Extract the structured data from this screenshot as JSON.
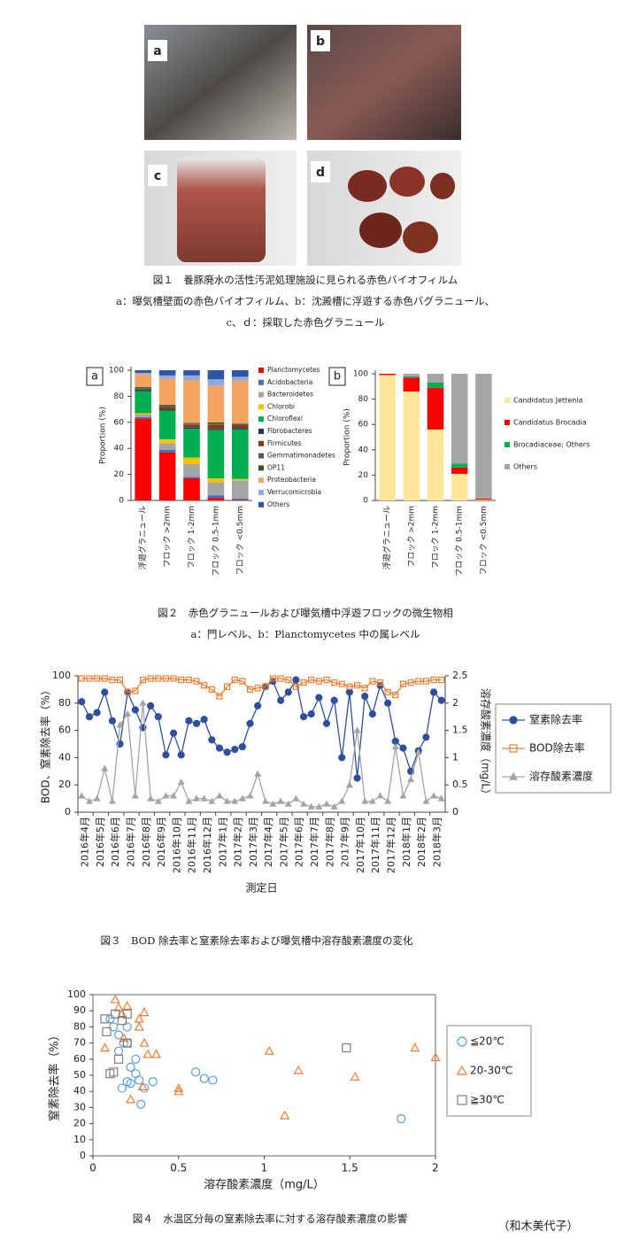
{
  "figure1": {
    "panels": [
      "a",
      "b",
      "c",
      "d"
    ],
    "caption": "図１　養豚廃水の活性汚泥処理施設に見られる赤色バイオフィルム",
    "subcaption1": "a：曝気槽壁面の赤色バイオフィルム、b：沈澱槽に浮遊する赤色バグラニュール、",
    "subcaption2": "c、ｄ：採取した赤色グラニュール"
  },
  "figure2": {
    "caption": "図２　赤色グラニュールおよび曝気槽中浮遊フロックの微生物相",
    "subcaption": "a：門レベル、b：Planctomycetes 中の属レベル"
  },
  "figure3": {
    "caption": "図３　BOD 除去率と窒素除去率および曝気槽中溶存酸素濃度の変化"
  },
  "figure4": {
    "caption": "図４　水温区分毎の窒素除去率に対する溶存酸素濃度の影響",
    "author": "（和木美代子）"
  },
  "chart_data": [
    {
      "type": "stacked_bar",
      "label": "a",
      "ylabel": "Proportion (%)",
      "categories": [
        "浮遊グラニュール",
        "フロック >2mm",
        "フロック 1-2mm",
        "フロック 0.5-1mm",
        "フロック <0.5mm"
      ],
      "ylim": [
        0,
        100
      ],
      "yticks": [
        0,
        20,
        40,
        60,
        80,
        100
      ],
      "series": [
        {
          "name": "Planctomycetes",
          "color": "#ff0000",
          "values": [
            63,
            37,
            17,
            2,
            0.5
          ]
        },
        {
          "name": "Acidobacteria",
          "color": "#4472c4",
          "values": [
            1,
            2,
            1,
            2,
            1
          ]
        },
        {
          "name": "Bacteroidetes",
          "color": "#a5a5a5",
          "values": [
            2,
            5,
            10,
            10,
            14
          ]
        },
        {
          "name": "Chlorobi",
          "color": "#ffc000",
          "values": [
            1,
            3,
            5,
            3,
            1
          ]
        },
        {
          "name": "Chloroflexi",
          "color": "#00b050",
          "values": [
            17,
            22,
            22,
            37,
            38
          ]
        },
        {
          "name": "Fibrobacteres",
          "color": "#203864",
          "values": [
            1,
            1,
            1,
            1,
            1
          ]
        },
        {
          "name": "Firmicutes",
          "color": "#843c0c",
          "values": [
            0.5,
            2,
            2,
            3,
            2
          ]
        },
        {
          "name": "Gemmatimonadetes",
          "color": "#595959",
          "values": [
            0.5,
            1,
            1,
            1,
            1
          ]
        },
        {
          "name": "OP11",
          "color": "#375623",
          "values": [
            1,
            0.5,
            0.5,
            1,
            0.5
          ]
        },
        {
          "name": "Proteobacteria",
          "color": "#f4a460",
          "values": [
            10,
            20,
            33,
            28,
            33
          ]
        },
        {
          "name": "Verrucomicrobia",
          "color": "#8faadc",
          "values": [
            1,
            2.5,
            3.5,
            5,
            3
          ]
        },
        {
          "name": "Others",
          "color": "#2f55a4",
          "values": [
            2,
            4,
            4,
            7,
            5
          ]
        }
      ]
    },
    {
      "type": "stacked_bar",
      "label": "b",
      "ylabel": "Proportion (%)",
      "categories": [
        "浮遊グラニュール",
        "フロック >2mm",
        "フロック 1-2mm",
        "フロック 0.5-1mm",
        "フロック <0.5mm"
      ],
      "ylim": [
        0,
        100
      ],
      "yticks": [
        0,
        20,
        40,
        60,
        80,
        100
      ],
      "series": [
        {
          "name": "Candidatus Jettenia",
          "color": "#ffe699",
          "values": [
            99,
            86,
            56,
            21,
            0.5
          ]
        },
        {
          "name": "Candidatus Brocadia",
          "color": "#ff0000",
          "values": [
            1,
            11,
            33,
            5,
            1
          ]
        },
        {
          "name": "Brocadiaceae; Others",
          "color": "#00b050",
          "values": [
            0,
            1,
            4,
            3,
            0
          ]
        },
        {
          "name": "Others",
          "color": "#a5a5a5",
          "values": [
            0,
            2,
            7,
            71,
            98.5
          ]
        }
      ]
    },
    {
      "type": "line",
      "ylabel": "BOD、窒素除去率（%）",
      "y2label": "溶存酸素濃度（mg/L）",
      "xlabel": "測定日",
      "categories": [
        "2016年4月",
        "2016年5月",
        "2016年6月",
        "2016年7月",
        "2016年8月",
        "2016年9月",
        "2016年10月",
        "2016年11月",
        "2016年12月",
        "2017年1月",
        "2017年2月",
        "2017年3月",
        "2017年4月",
        "2017年5月",
        "2017年6月",
        "2017年7月",
        "2017年8月",
        "2017年9月",
        "2017年10月",
        "2017年11月",
        "2017年12月",
        "2018年1月",
        "2018年2月",
        "2018年3月"
      ],
      "x": [
        "2016年4月",
        "2016年4月",
        "2016年5月",
        "2016年5月",
        "2016年6月",
        "2016年6月",
        "2016年7月",
        "2016年7月",
        "2016年8月",
        "2016年8月",
        "2016年9月",
        "2016年9月",
        "2016年10月",
        "2016年10月",
        "2016年11月",
        "2016年11月",
        "2016年12月",
        "2016年12月",
        "2017年1月",
        "2017年1月",
        "2017年2月",
        "2017年2月",
        "2017年3月",
        "2017年3月",
        "2017年4月",
        "2017年4月",
        "2017年5月",
        "2017年5月",
        "2017年6月",
        "2017年6月",
        "2017年7月",
        "2017年7月",
        "2017年8月",
        "2017年8月",
        "2017年9月",
        "2017年9月",
        "2017年10月",
        "2017年10月",
        "2017年11月",
        "2017年11月",
        "2017年12月",
        "2017年12月",
        "2018年1月",
        "2018年1月",
        "2018年2月",
        "2018年2月",
        "2018年3月",
        "2018年3月"
      ],
      "ylim": [
        0,
        100
      ],
      "yticks": [
        0,
        20,
        40,
        60,
        80,
        100
      ],
      "y2lim": [
        0,
        2.5
      ],
      "y2ticks": [
        0,
        0.5,
        1,
        1.5,
        2,
        2.5
      ],
      "series": [
        {
          "name": "窒素除去率",
          "color": "#2f4f9e",
          "marker": "circle",
          "marker_fill": true,
          "values": [
            81,
            70,
            73,
            88,
            67,
            50,
            88,
            75,
            62,
            78,
            70,
            42,
            58,
            42,
            67,
            65,
            68,
            53,
            47,
            44,
            46,
            48,
            65,
            78,
            92,
            96,
            82,
            88,
            97,
            70,
            72,
            84,
            65,
            82,
            40,
            88,
            25,
            85,
            72,
            93,
            80,
            52,
            47,
            30,
            45,
            55,
            88,
            82
          ]
        },
        {
          "name": "BOD除去率",
          "color": "#ed7d31",
          "marker": "square",
          "marker_fill": false,
          "values": [
            98,
            98,
            98,
            98,
            97,
            97,
            88,
            89,
            97,
            98,
            98,
            98,
            98,
            97,
            97,
            96,
            93,
            90,
            85,
            92,
            97,
            96,
            90,
            91,
            92,
            98,
            98,
            97,
            92,
            95,
            97,
            96,
            97,
            95,
            94,
            92,
            93,
            91,
            96,
            95,
            88,
            86,
            94,
            95,
            96,
            96,
            97,
            97
          ]
        },
        {
          "name": "溶存酸素濃度",
          "color": "#a5a5a5",
          "marker": "triangle",
          "marker_fill": true,
          "axis": "y2",
          "values": [
            0.3,
            0.2,
            0.25,
            0.8,
            0.2,
            1.6,
            1.8,
            0.3,
            2.0,
            0.25,
            0.2,
            0.3,
            0.3,
            0.55,
            0.2,
            0.25,
            0.25,
            0.2,
            0.3,
            0.2,
            0.2,
            0.25,
            0.3,
            0.7,
            0.2,
            0.15,
            0.2,
            0.15,
            0.25,
            0.15,
            0.1,
            0.1,
            0.15,
            0.1,
            0.2,
            0.5,
            1.5,
            0.2,
            0.2,
            0.3,
            0.2,
            1.2,
            0.3,
            0.6,
            1.1,
            0.2,
            0.3,
            0.25
          ]
        }
      ]
    },
    {
      "type": "scatter",
      "xlabel": "溶存酸素濃度（mg/L）",
      "ylabel": "窒素除去率（%）",
      "xlim": [
        0,
        2
      ],
      "xticks": [
        0,
        0.5,
        1,
        1.5,
        2
      ],
      "ylim": [
        0,
        100
      ],
      "yticks": [
        0,
        10,
        20,
        30,
        40,
        50,
        60,
        70,
        80,
        90,
        100
      ],
      "series": [
        {
          "name": "≦20℃",
          "color": "#5b9bd5",
          "marker": "circle",
          "x": [
            0.1,
            0.12,
            0.15,
            0.17,
            0.18,
            0.2,
            0.2,
            0.22,
            0.22,
            0.25,
            0.25,
            0.27,
            0.28,
            0.3,
            0.35,
            0.6,
            0.65,
            0.7,
            1.8,
            0.2,
            0.15
          ],
          "values": [
            85,
            80,
            75,
            42,
            70,
            80,
            46,
            55,
            45,
            60,
            51,
            47,
            32,
            42,
            46,
            52,
            48,
            47,
            23,
            70,
            65
          ]
        },
        {
          "name": "20-30℃",
          "color": "#ed7d31",
          "marker": "triangle",
          "x": [
            0.07,
            0.13,
            0.15,
            0.17,
            0.2,
            0.22,
            0.27,
            0.27,
            0.3,
            0.3,
            0.32,
            0.37,
            0.5,
            0.5,
            1.03,
            1.12,
            1.2,
            1.53,
            1.88,
            2.0,
            0.18,
            0.29
          ],
          "values": [
            67,
            97,
            92,
            88,
            93,
            35,
            85,
            80,
            89,
            70,
            63,
            63,
            40,
            42,
            65,
            25,
            53,
            49,
            67,
            61,
            73,
            43
          ]
        },
        {
          "name": "≧30℃",
          "color": "#7f7f7f",
          "marker": "square",
          "x": [
            0.07,
            0.08,
            0.1,
            0.12,
            0.13,
            0.17,
            0.2,
            0.2,
            1.48,
            0.15
          ],
          "values": [
            85,
            77,
            51,
            52,
            88,
            84,
            70,
            88,
            67,
            60
          ]
        }
      ]
    }
  ]
}
